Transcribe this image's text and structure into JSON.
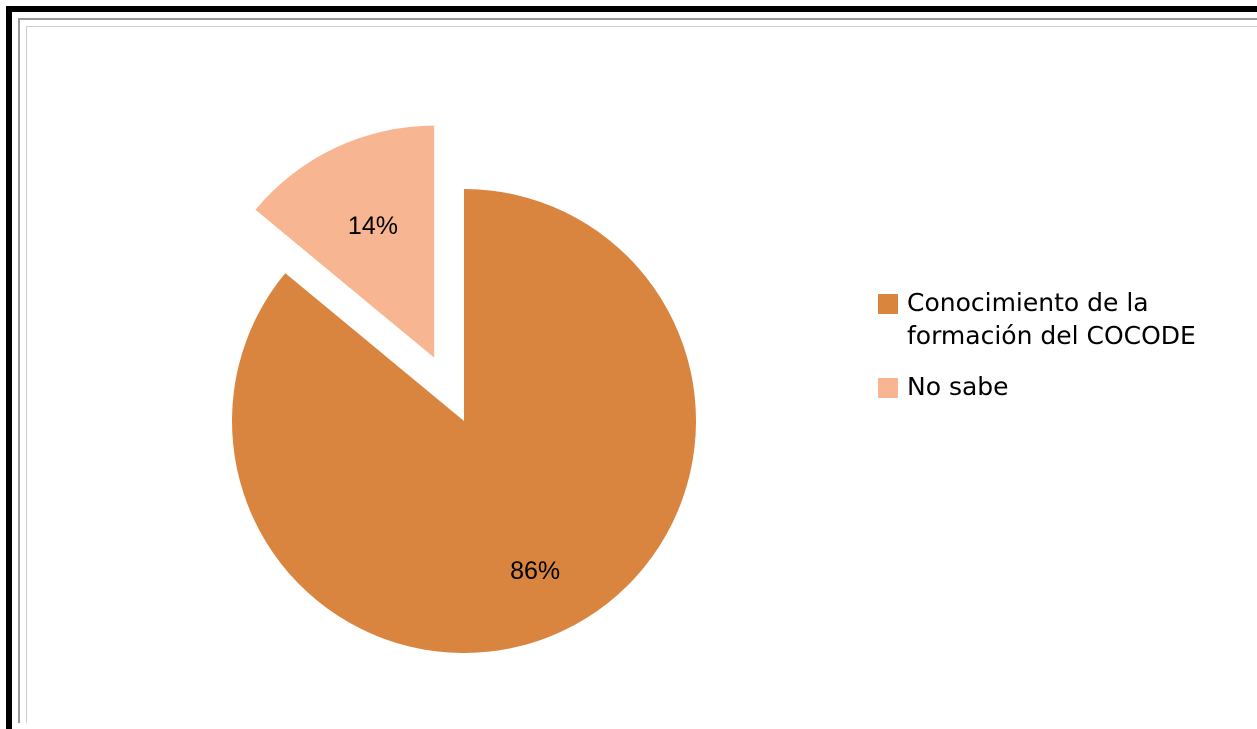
{
  "chart_data": {
    "type": "pie",
    "title": "",
    "slices": [
      {
        "name": "Conocimiento de la formación del COCODE",
        "value": 86,
        "label": "86%",
        "color": "#d9843f",
        "exploded": false
      },
      {
        "name": "No sabe",
        "value": 14,
        "label": "14%",
        "color": "#f8b592",
        "exploded": true
      }
    ],
    "start_angle_deg": 0,
    "direction": "clockwise",
    "legend_position": "right"
  },
  "legend": {
    "items": [
      {
        "label": "Conocimiento de la formación del COCODE",
        "color": "#d9843f"
      },
      {
        "label": "No sabe",
        "color": "#f8b592"
      }
    ]
  }
}
